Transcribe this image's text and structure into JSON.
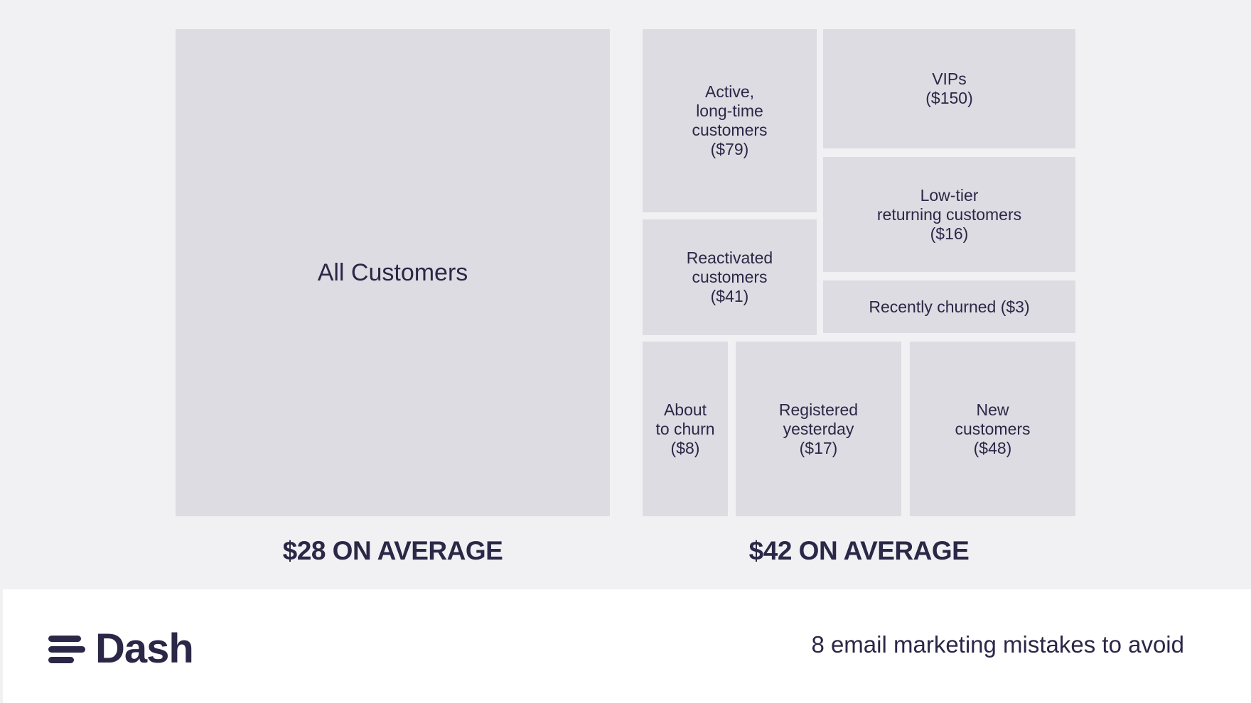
{
  "left_group": {
    "tile_label": "All Customers",
    "average_caption": "$28 ON AVERAGE"
  },
  "right_group": {
    "segments": [
      {
        "name": "Active, long-time customers",
        "label": "Active,\nlong-time\ncustomers\n($79)",
        "value": 79
      },
      {
        "name": "VIPs",
        "label": "VIPs\n($150)",
        "value": 150
      },
      {
        "name": "Low-tier returning customers",
        "label": "Low-tier\nreturning customers\n($16)",
        "value": 16
      },
      {
        "name": "Reactivated customers",
        "label": "Reactivated\ncustomers\n($41)",
        "value": 41
      },
      {
        "name": "Recently churned",
        "label": "Recently churned ($3)",
        "value": 3
      },
      {
        "name": "About to churn",
        "label": "About\nto churn\n($8)",
        "value": 8
      },
      {
        "name": "Registered yesterday",
        "label": "Registered\nyesterday\n($17)",
        "value": 17
      },
      {
        "name": "New customers",
        "label": "New\ncustomers\n($48)",
        "value": 48
      }
    ],
    "average_caption": "$42 ON AVERAGE"
  },
  "footer": {
    "brand": "Dash",
    "tagline": "8 email marketing mistakes to avoid"
  },
  "colors": {
    "background": "#f1f1f4",
    "tile": "#dddce2",
    "text": "#2b2747",
    "footer": "#ffffff"
  }
}
